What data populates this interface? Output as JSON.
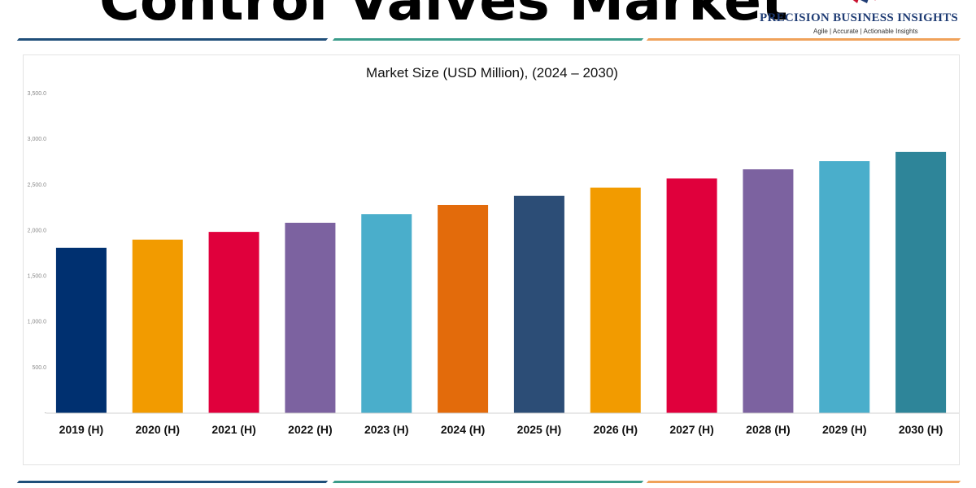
{
  "header": {
    "title": "Control Valves Market",
    "logo_name": "PRECISION BUSINESS INSIGHTS",
    "logo_tagline": "Agile | Accurate | Actionable Insights"
  },
  "colors": {
    "stripe_navy": "#1f4e79",
    "stripe_teal": "#3a9c8a",
    "stripe_orange": "#f0a25a"
  },
  "chart_data": {
    "type": "bar",
    "title": "Market Size (USD Million), (2024 – 2030)",
    "xlabel": "",
    "ylabel": "",
    "ylim": [
      0,
      3500
    ],
    "y_ticks": [
      0,
      500,
      1000,
      1500,
      2000,
      2500,
      3000,
      3500
    ],
    "y_tick_labels": [
      "-",
      "500.0",
      "1,000.0",
      "1,500.0",
      "2,000.0",
      "2,500.0",
      "3,000.0",
      "3,500.0"
    ],
    "grid": false,
    "legend": "none",
    "categories": [
      "2019 (H)",
      "2020 (H)",
      "2021 (H)",
      "2022 (H)",
      "2023 (H)",
      "2024 (H)",
      "2025 (H)",
      "2026 (H)",
      "2027 (H)",
      "2028 (H)",
      "2029 (H)",
      "2030 (H)"
    ],
    "values": [
      1810,
      1900,
      1985,
      2085,
      2180,
      2280,
      2380,
      2470,
      2570,
      2670,
      2760,
      2860
    ],
    "colors": [
      "#003070",
      "#f29b00",
      "#e0003c",
      "#7c62a0",
      "#4aaecb",
      "#e36b0b",
      "#2c4d76",
      "#f29b00",
      "#e0003c",
      "#7c62a0",
      "#4aaecb",
      "#2e8599"
    ]
  }
}
